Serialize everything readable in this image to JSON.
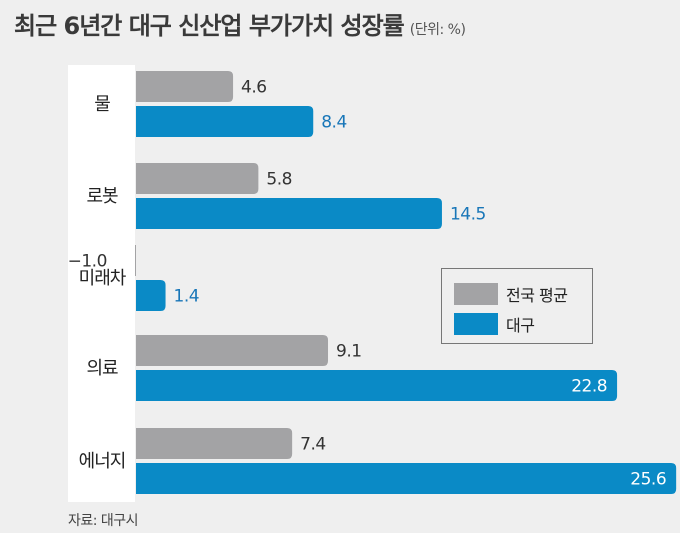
{
  "header": {
    "title": "최근 6년간 대구 신산업 부가가치 성장률",
    "unit": "(단위: %)"
  },
  "colors": {
    "national": "#a3a3a5",
    "daegu": "#0a8ac6",
    "panel": "#ffffff",
    "background": "#efefef",
    "daegu_label": "#1876b8"
  },
  "chart_data": {
    "type": "bar",
    "orientation": "horizontal",
    "categories": [
      "물",
      "로봇",
      "미래차",
      "의료",
      "에너지"
    ],
    "series": [
      {
        "name": "전국 평균",
        "values": [
          4.6,
          5.8,
          -1.0,
          9.1,
          7.4
        ]
      },
      {
        "name": "대구",
        "values": [
          8.4,
          14.5,
          1.4,
          22.8,
          25.6
        ]
      }
    ],
    "value_labels": [
      [
        "4.6",
        "5.8",
        "−1.0",
        "9.1",
        "7.4"
      ],
      [
        "8.4",
        "14.5",
        "1.4",
        "22.8",
        "25.6"
      ]
    ],
    "xlim": [
      -1.0,
      25.6
    ],
    "grid": false,
    "legend": "right-middle"
  },
  "source": "자료: 대구시"
}
